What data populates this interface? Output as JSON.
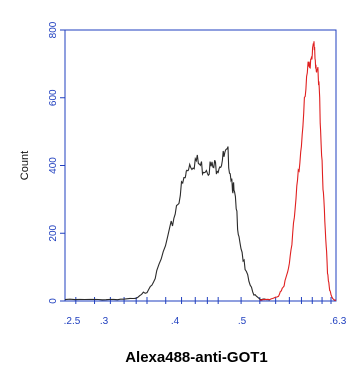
{
  "chart_data": {
    "type": "line",
    "xlabel": "Alexa488-anti-GOT1",
    "ylabel": "Count",
    "x_scale": "log",
    "xlim": [
      0.45,
      6.3
    ],
    "ylim": [
      0,
      800
    ],
    "x_tick_labels": [
      ".2.5",
      ".3",
      ".4",
      ".5",
      ".6.3"
    ],
    "y_ticks": [
      0,
      200,
      400,
      600,
      800
    ],
    "grid": false,
    "series": [
      {
        "color": "#2a2a2a",
        "x": [
          0.45,
          0.6,
          0.75,
          0.9,
          1.0,
          1.1,
          1.25,
          1.35,
          1.45,
          1.5,
          1.6,
          1.7,
          1.8,
          1.9,
          2.0,
          2.1,
          2.2,
          2.3,
          2.35,
          2.45,
          2.6,
          2.8,
          3.0,
          3.3
        ],
        "y": [
          4,
          4,
          5,
          7,
          30,
          80,
          200,
          300,
          360,
          405,
          415,
          395,
          400,
          390,
          405,
          420,
          430,
          350,
          300,
          200,
          90,
          25,
          6,
          3
        ]
      },
      {
        "color": "#e02020",
        "x": [
          3.0,
          3.3,
          3.6,
          3.8,
          4.0,
          4.2,
          4.4,
          4.6,
          4.8,
          4.95,
          5.05,
          5.15,
          5.25,
          5.35,
          5.5,
          5.65,
          5.8,
          5.95,
          6.1,
          6.3
        ],
        "y": [
          2,
          5,
          15,
          40,
          120,
          240,
          400,
          560,
          680,
          730,
          755,
          720,
          690,
          610,
          420,
          230,
          90,
          25,
          6,
          2
        ]
      }
    ]
  }
}
